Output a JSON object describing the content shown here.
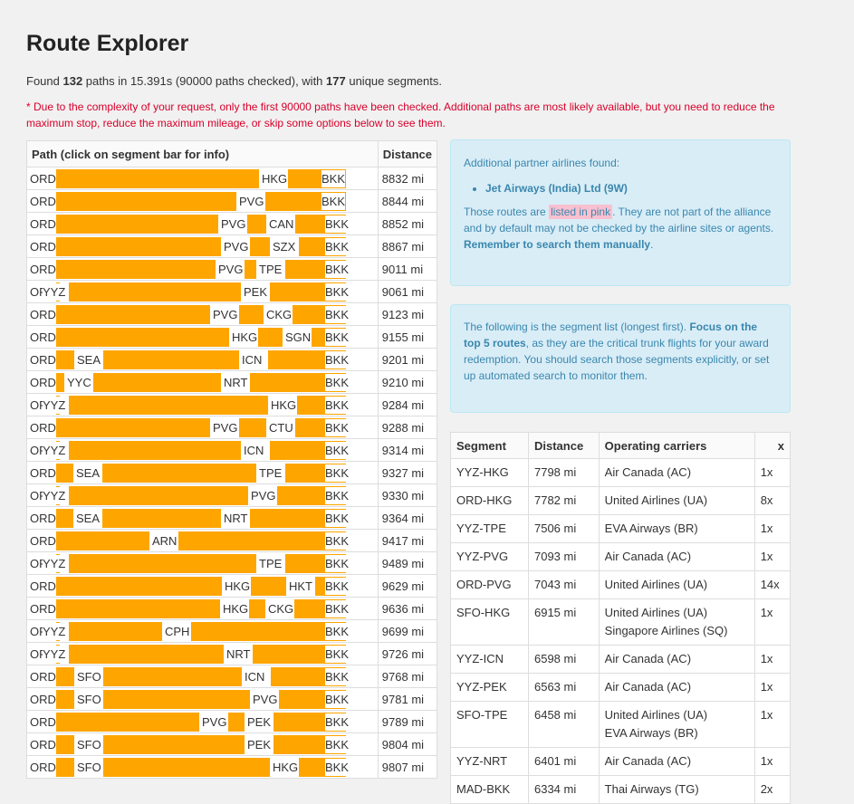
{
  "title": "Route Explorer",
  "summary": {
    "prefix": "Found ",
    "paths": "132",
    "mid1": " paths in 15.391s (90000 paths checked), with ",
    "segments": "177",
    "suffix": " unique segments."
  },
  "warning": "* Due to the complexity of your request, only the first 90000 paths have been checked. Additional paths are most likely available, but you need to reduce the maximum stop, reduce the maximum mileage, or skip some options below to see them.",
  "path_table": {
    "header_path": "Path (click on segment bar for info)",
    "header_distance": "Distance",
    "rows": [
      {
        "stops": [
          [
            "ORD",
            0
          ],
          [
            "HKG",
            256
          ],
          [
            "BKK",
            322
          ]
        ],
        "distance": "8832 mi"
      },
      {
        "stops": [
          [
            "ORD",
            0
          ],
          [
            "PVG",
            231
          ],
          [
            "BKK",
            322
          ]
        ],
        "distance": "8844 mi"
      },
      {
        "stops": [
          [
            "ORD",
            0
          ],
          [
            "PVG",
            211
          ],
          [
            "CAN",
            264
          ],
          [
            "BKK",
            326
          ]
        ],
        "distance": "8852 mi"
      },
      {
        "stops": [
          [
            "ORD",
            0
          ],
          [
            "PVG",
            214
          ],
          [
            "SZX",
            268
          ],
          [
            "BKK",
            326
          ]
        ],
        "distance": "8867 mi"
      },
      {
        "stops": [
          [
            "ORD",
            0
          ],
          [
            "PVG",
            208
          ],
          [
            "TPE",
            253
          ],
          [
            "BKK",
            326
          ]
        ],
        "distance": "9011 mi"
      },
      {
        "stops": [
          [
            "ORD",
            0
          ],
          [
            "YYZ",
            14
          ],
          [
            "PEK",
            236
          ],
          [
            "BKK",
            326
          ]
        ],
        "distance": "9061 mi"
      },
      {
        "stops": [
          [
            "ORD",
            0
          ],
          [
            "PVG",
            202
          ],
          [
            "CKG",
            261
          ],
          [
            "BKK",
            326
          ]
        ],
        "distance": "9123 mi"
      },
      {
        "stops": [
          [
            "ORD",
            0
          ],
          [
            "HKG",
            223
          ],
          [
            "SGN",
            282
          ],
          [
            "BKK",
            326
          ]
        ],
        "distance": "9155 mi"
      },
      {
        "stops": [
          [
            "ORD",
            0
          ],
          [
            "SEA",
            52
          ],
          [
            "ICN",
            234
          ],
          [
            "BKK",
            326
          ]
        ],
        "distance": "9201 mi"
      },
      {
        "stops": [
          [
            "ORD",
            0
          ],
          [
            "YYC",
            41
          ],
          [
            "NRT",
            214
          ],
          [
            "BKK",
            326
          ]
        ],
        "distance": "9210 mi"
      },
      {
        "stops": [
          [
            "ORD",
            0
          ],
          [
            "YYZ",
            14
          ],
          [
            "HKG",
            266
          ],
          [
            "BKK",
            326
          ]
        ],
        "distance": "9284 mi"
      },
      {
        "stops": [
          [
            "ORD",
            0
          ],
          [
            "PVG",
            202
          ],
          [
            "CTU",
            264
          ],
          [
            "BKK",
            326
          ]
        ],
        "distance": "9288 mi"
      },
      {
        "stops": [
          [
            "ORD",
            0
          ],
          [
            "YYZ",
            14
          ],
          [
            "ICN",
            236
          ],
          [
            "BKK",
            326
          ]
        ],
        "distance": "9314 mi"
      },
      {
        "stops": [
          [
            "ORD",
            0
          ],
          [
            "SEA",
            51
          ],
          [
            "TPE",
            253
          ],
          [
            "BKK",
            326
          ]
        ],
        "distance": "9327 mi"
      },
      {
        "stops": [
          [
            "ORD",
            0
          ],
          [
            "YYZ",
            14
          ],
          [
            "PVG",
            244
          ],
          [
            "BKK",
            326
          ]
        ],
        "distance": "9330 mi"
      },
      {
        "stops": [
          [
            "ORD",
            0
          ],
          [
            "SEA",
            51
          ],
          [
            "NRT",
            214
          ],
          [
            "BKK",
            326
          ]
        ],
        "distance": "9364 mi"
      },
      {
        "stops": [
          [
            "ORD",
            0
          ],
          [
            "ARN",
            135
          ],
          [
            "BKK",
            326
          ]
        ],
        "distance": "9417 mi"
      },
      {
        "stops": [
          [
            "ORD",
            0
          ],
          [
            "YYZ",
            14
          ],
          [
            "TPE",
            253
          ],
          [
            "BKK",
            326
          ]
        ],
        "distance": "9489 mi"
      },
      {
        "stops": [
          [
            "ORD",
            0
          ],
          [
            "HKG",
            215
          ],
          [
            "HKT",
            286
          ],
          [
            "BKK",
            326
          ]
        ],
        "distance": "9629 mi"
      },
      {
        "stops": [
          [
            "ORD",
            0
          ],
          [
            "HKG",
            213
          ],
          [
            "CKG",
            263
          ],
          [
            "BKK",
            326
          ]
        ],
        "distance": "9636 mi"
      },
      {
        "stops": [
          [
            "ORD",
            0
          ],
          [
            "YYZ",
            14
          ],
          [
            "CPH",
            149
          ],
          [
            "BKK",
            326
          ]
        ],
        "distance": "9699 mi"
      },
      {
        "stops": [
          [
            "ORD",
            0
          ],
          [
            "YYZ",
            14
          ],
          [
            "NRT",
            217
          ],
          [
            "BKK",
            326
          ]
        ],
        "distance": "9726 mi"
      },
      {
        "stops": [
          [
            "ORD",
            0
          ],
          [
            "SFO",
            52
          ],
          [
            "ICN",
            237
          ],
          [
            "BKK",
            326
          ]
        ],
        "distance": "9768 mi"
      },
      {
        "stops": [
          [
            "ORD",
            0
          ],
          [
            "SFO",
            52
          ],
          [
            "PVG",
            246
          ],
          [
            "BKK",
            326
          ]
        ],
        "distance": "9781 mi"
      },
      {
        "stops": [
          [
            "ORD",
            0
          ],
          [
            "PVG",
            190
          ],
          [
            "PEK",
            240
          ],
          [
            "BKK",
            326
          ]
        ],
        "distance": "9789 mi"
      },
      {
        "stops": [
          [
            "ORD",
            0
          ],
          [
            "SFO",
            52
          ],
          [
            "PEK",
            240
          ],
          [
            "BKK",
            326
          ]
        ],
        "distance": "9804 mi"
      },
      {
        "stops": [
          [
            "ORD",
            0
          ],
          [
            "SFO",
            52
          ],
          [
            "HKG",
            268
          ],
          [
            "BKK",
            326
          ]
        ],
        "distance": "9807 mi"
      }
    ]
  },
  "info1": {
    "heading": "Additional partner airlines found:",
    "airline": "Jet Airways (India) Ltd (9W)",
    "text_a": "Those routes are ",
    "pink": "listed in pink",
    "text_b": ". They are not part of the alliance and by default may not be checked by the airline sites or agents. ",
    "bold": "Remember to search them manually",
    "text_c": "."
  },
  "info2": {
    "text_a": "The following is the segment list (longest first). ",
    "bold": "Focus on the top 5 routes",
    "text_b": ", as they are the critical trunk flights for your award redemption. You should search those segments explicitly, or set up automated search to monitor them."
  },
  "segment_table": {
    "headers": [
      "Segment",
      "Distance",
      "Operating carriers",
      "x"
    ],
    "rows": [
      {
        "seg": "YYZ-HKG",
        "dist": "7798 mi",
        "carriers": [
          "Air Canada (AC)"
        ],
        "x": "1x"
      },
      {
        "seg": "ORD-HKG",
        "dist": "7782 mi",
        "carriers": [
          "United Airlines (UA)"
        ],
        "x": "8x"
      },
      {
        "seg": "YYZ-TPE",
        "dist": "7506 mi",
        "carriers": [
          "EVA Airways (BR)"
        ],
        "x": "1x"
      },
      {
        "seg": "YYZ-PVG",
        "dist": "7093 mi",
        "carriers": [
          "Air Canada (AC)"
        ],
        "x": "1x"
      },
      {
        "seg": "ORD-PVG",
        "dist": "7043 mi",
        "carriers": [
          "United Airlines (UA)"
        ],
        "x": "14x"
      },
      {
        "seg": "SFO-HKG",
        "dist": "6915 mi",
        "carriers": [
          "United Airlines (UA)",
          "Singapore Airlines (SQ)"
        ],
        "x": "1x"
      },
      {
        "seg": "YYZ-ICN",
        "dist": "6598 mi",
        "carriers": [
          "Air Canada (AC)"
        ],
        "x": "1x"
      },
      {
        "seg": "YYZ-PEK",
        "dist": "6563 mi",
        "carriers": [
          "Air Canada (AC)"
        ],
        "x": "1x"
      },
      {
        "seg": "SFO-TPE",
        "dist": "6458 mi",
        "carriers": [
          "United Airlines (UA)",
          "EVA Airways (BR)"
        ],
        "x": "1x"
      },
      {
        "seg": "YYZ-NRT",
        "dist": "6401 mi",
        "carriers": [
          "Air Canada (AC)"
        ],
        "x": "1x"
      },
      {
        "seg": "MAD-BKK",
        "dist": "6334 mi",
        "carriers": [
          "Thai Airways (TG)"
        ],
        "x": "2x"
      }
    ]
  }
}
